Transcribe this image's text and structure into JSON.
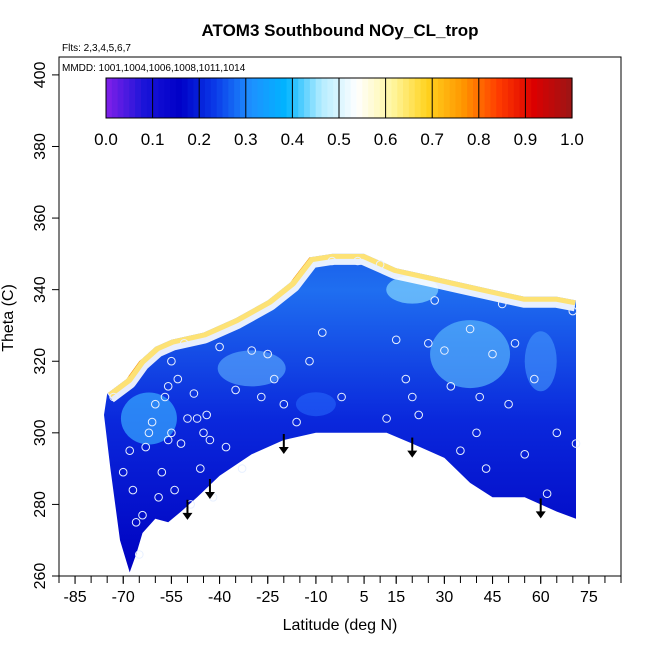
{
  "chart_data": {
    "type": "heatmap",
    "title": "ATOM3 Southbound NOy_CL_trop",
    "flights_note": "Flts: 2,3,4,5,6,7",
    "dates_note": "MMDD: 1001,1004,1006,1008,1011,1014",
    "xlabel": "Latitude (deg N)",
    "ylabel": "Theta (C)",
    "xlim": [
      -90,
      85
    ],
    "ylim": [
      260,
      405
    ],
    "x_ticks": [
      -85,
      -70,
      -55,
      -40,
      -25,
      -10,
      5,
      15,
      30,
      45,
      60,
      75
    ],
    "y_ticks": [
      260,
      280,
      300,
      320,
      340,
      360,
      380,
      400
    ],
    "colorbar": {
      "min": 0.0,
      "max": 1.0,
      "ticks": [
        "0.0",
        "0.1",
        "0.2",
        "0.3",
        "0.4",
        "0.5",
        "0.6",
        "0.7",
        "0.8",
        "0.9",
        "1.0"
      ],
      "colors": [
        "#7a1fe8",
        "#1a14d8",
        "#0000c8",
        "#0a3ae8",
        "#1e90ff",
        "#00b4ff",
        "#b4ecff",
        "#ffffff",
        "#fff6a0",
        "#ffd21e",
        "#ff9600",
        "#ff3c00",
        "#dc0000",
        "#a01414"
      ]
    },
    "upper_boundary": [
      [
        -75,
        311
      ],
      [
        -69,
        315
      ],
      [
        -65,
        320
      ],
      [
        -60,
        324
      ],
      [
        -55,
        326
      ],
      [
        -45,
        328
      ],
      [
        -35,
        332
      ],
      [
        -25,
        337
      ],
      [
        -18,
        342
      ],
      [
        -12,
        349
      ],
      [
        -5,
        350
      ],
      [
        5,
        350
      ],
      [
        15,
        346
      ],
      [
        25,
        344
      ],
      [
        35,
        342
      ],
      [
        45,
        340
      ],
      [
        55,
        338
      ],
      [
        65,
        338
      ],
      [
        71,
        337
      ]
    ],
    "lower_boundary": [
      [
        71,
        276
      ],
      [
        65,
        278
      ],
      [
        55,
        282
      ],
      [
        45,
        282
      ],
      [
        38,
        286
      ],
      [
        30,
        293
      ],
      [
        20,
        297
      ],
      [
        12,
        300
      ],
      [
        0,
        300
      ],
      [
        -10,
        300
      ],
      [
        -20,
        298
      ],
      [
        -30,
        294
      ],
      [
        -40,
        288
      ],
      [
        -47,
        282
      ],
      [
        -52,
        278
      ],
      [
        -56,
        275
      ],
      [
        -60,
        276
      ],
      [
        -64,
        272
      ],
      [
        -66,
        266
      ],
      [
        -68,
        261
      ],
      [
        -71,
        270
      ],
      [
        -74,
        290
      ],
      [
        -76,
        305
      ]
    ],
    "points": [
      [
        -73,
        310
      ],
      [
        -70,
        289
      ],
      [
        -68,
        295
      ],
      [
        -67,
        284
      ],
      [
        -66,
        275
      ],
      [
        -65,
        266
      ],
      [
        -64,
        277
      ],
      [
        -63,
        296
      ],
      [
        -62,
        300
      ],
      [
        -61,
        303
      ],
      [
        -60,
        308
      ],
      [
        -59,
        282
      ],
      [
        -58,
        289
      ],
      [
        -57,
        310
      ],
      [
        -56,
        313
      ],
      [
        -56,
        298
      ],
      [
        -55,
        320
      ],
      [
        -55,
        300
      ],
      [
        -54,
        284
      ],
      [
        -53,
        315
      ],
      [
        -52,
        297
      ],
      [
        -51,
        325
      ],
      [
        -50,
        304
      ],
      [
        -49,
        280
      ],
      [
        -48,
        311
      ],
      [
        -47,
        304
      ],
      [
        -46,
        290
      ],
      [
        -45,
        300
      ],
      [
        -44,
        305
      ],
      [
        -43,
        298
      ],
      [
        -42,
        282
      ],
      [
        -40,
        324
      ],
      [
        -38,
        296
      ],
      [
        -35,
        312
      ],
      [
        -33,
        290
      ],
      [
        -30,
        323
      ],
      [
        -27,
        310
      ],
      [
        -25,
        322
      ],
      [
        -23,
        315
      ],
      [
        -20,
        308
      ],
      [
        -16,
        303
      ],
      [
        -12,
        320
      ],
      [
        -8,
        328
      ],
      [
        -5,
        348
      ],
      [
        -2,
        310
      ],
      [
        3,
        348
      ],
      [
        10,
        347
      ],
      [
        12,
        304
      ],
      [
        15,
        326
      ],
      [
        18,
        315
      ],
      [
        20,
        310
      ],
      [
        22,
        305
      ],
      [
        25,
        325
      ],
      [
        27,
        337
      ],
      [
        30,
        323
      ],
      [
        32,
        313
      ],
      [
        35,
        295
      ],
      [
        38,
        329
      ],
      [
        40,
        300
      ],
      [
        41,
        310
      ],
      [
        43,
        290
      ],
      [
        45,
        322
      ],
      [
        48,
        336
      ],
      [
        50,
        308
      ],
      [
        52,
        325
      ],
      [
        55,
        294
      ],
      [
        58,
        315
      ],
      [
        62,
        283
      ],
      [
        65,
        300
      ],
      [
        70,
        334
      ],
      [
        71,
        297
      ]
    ],
    "arrows": [
      -50,
      -43,
      -20,
      20,
      60
    ]
  }
}
